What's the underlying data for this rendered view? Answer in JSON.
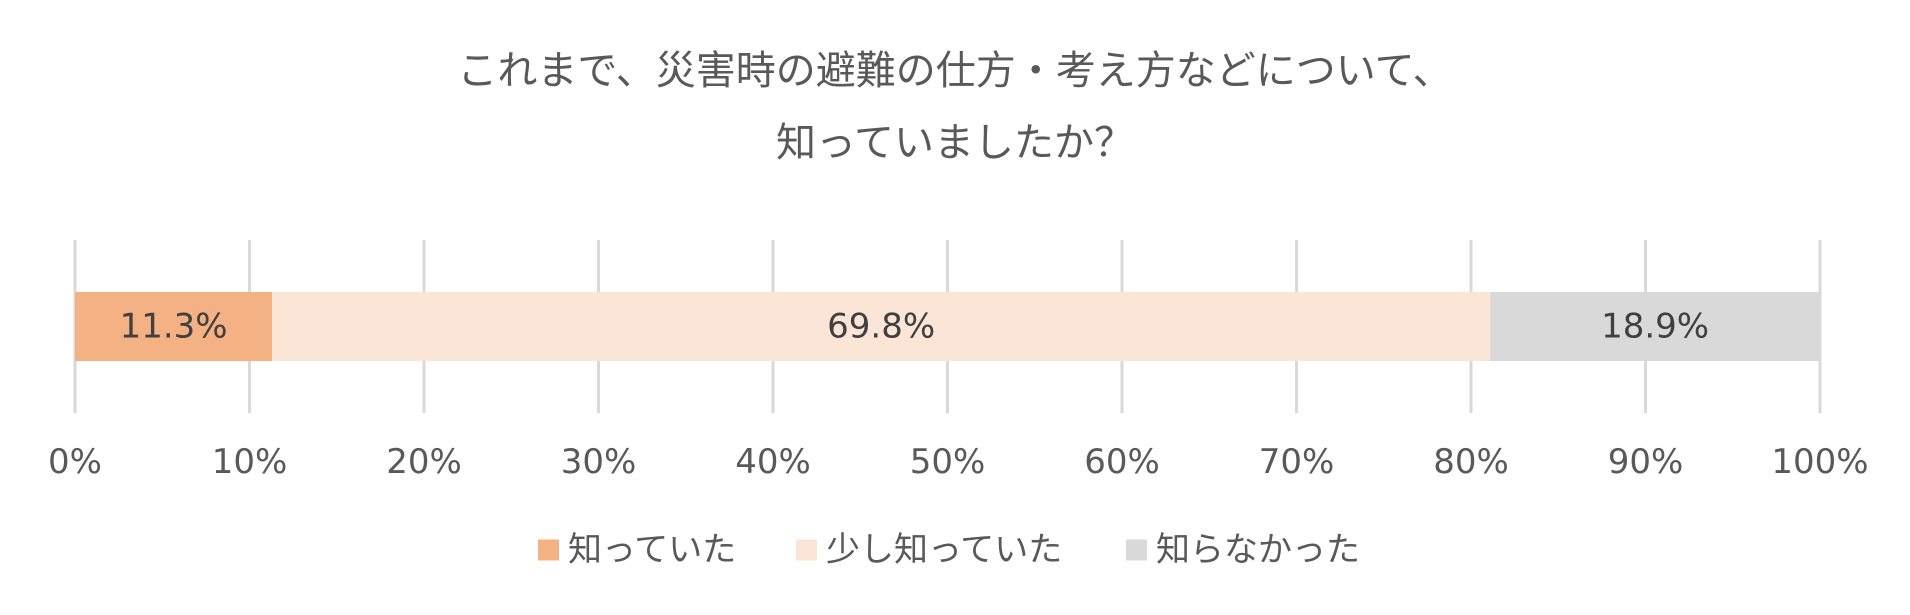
{
  "chart_data": {
    "type": "bar",
    "orientation": "horizontal",
    "stacking": "percent",
    "title_lines": [
      "これまで、災害時の避難の仕方・考え方などについて、",
      "知っていましたか？"
    ],
    "categories": [
      ""
    ],
    "series": [
      {
        "name": "知っていた",
        "values": [
          11.3
        ],
        "label": "11.3%",
        "color": "#f4b183"
      },
      {
        "name": "少し知っていた",
        "values": [
          69.8
        ],
        "label": "69.8%",
        "color": "#fbe5d6"
      },
      {
        "name": "知らなかった",
        "values": [
          18.9
        ],
        "label": "18.9%",
        "color": "#d9d9d9"
      }
    ],
    "xlim": [
      0,
      100
    ],
    "xticks": [
      "0%",
      "10%",
      "20%",
      "30%",
      "40%",
      "50%",
      "60%",
      "70%",
      "80%",
      "90%",
      "100%"
    ],
    "grid": true,
    "legend_position": "bottom"
  }
}
